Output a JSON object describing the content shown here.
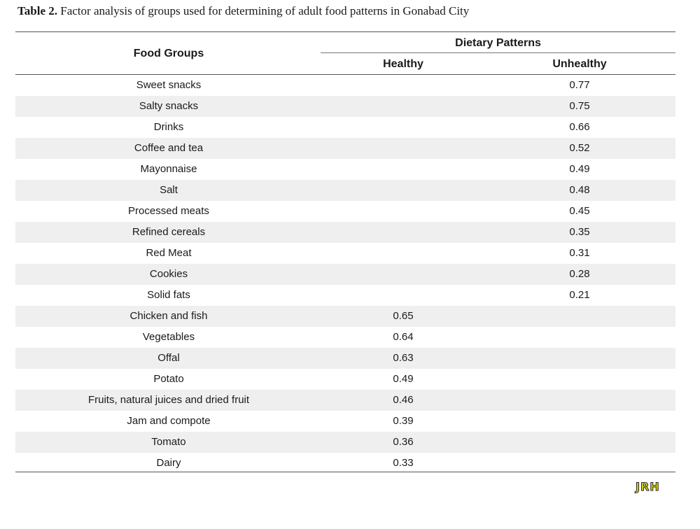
{
  "caption": {
    "label": "Table 2.",
    "text": " Factor analysis of groups used for determining of adult food patterns in Gonabad City"
  },
  "headers": {
    "food_groups": "Food Groups",
    "dietary_patterns": "Dietary Patterns",
    "healthy": "Healthy",
    "unhealthy": "Unhealthy"
  },
  "rows": [
    {
      "food": "Sweet snacks",
      "healthy": "",
      "unhealthy": "0.77"
    },
    {
      "food": "Salty snacks",
      "healthy": "",
      "unhealthy": "0.75"
    },
    {
      "food": "Drinks",
      "healthy": "",
      "unhealthy": "0.66"
    },
    {
      "food": "Coffee and tea",
      "healthy": "",
      "unhealthy": "0.52"
    },
    {
      "food": "Mayonnaise",
      "healthy": "",
      "unhealthy": "0.49"
    },
    {
      "food": "Salt",
      "healthy": "",
      "unhealthy": "0.48"
    },
    {
      "food": "Processed meats",
      "healthy": "",
      "unhealthy": "0.45"
    },
    {
      "food": "Refined cereals",
      "healthy": "",
      "unhealthy": "0.35"
    },
    {
      "food": "Red Meat",
      "healthy": "",
      "unhealthy": "0.31"
    },
    {
      "food": "Cookies",
      "healthy": "",
      "unhealthy": "0.28"
    },
    {
      "food": "Solid fats",
      "healthy": "",
      "unhealthy": "0.21"
    },
    {
      "food": "Chicken and fish",
      "healthy": "0.65",
      "unhealthy": ""
    },
    {
      "food": "Vegetables",
      "healthy": "0.64",
      "unhealthy": ""
    },
    {
      "food": "Offal",
      "healthy": "0.63",
      "unhealthy": ""
    },
    {
      "food": "Potato",
      "healthy": "0.49",
      "unhealthy": ""
    },
    {
      "food": "Fruits, natural juices and dried fruit",
      "healthy": "0.46",
      "unhealthy": ""
    },
    {
      "food": "Jam and compote",
      "healthy": "0.39",
      "unhealthy": ""
    },
    {
      "food": "Tomato",
      "healthy": "0.36",
      "unhealthy": ""
    },
    {
      "food": "Dairy",
      "healthy": "0.33",
      "unhealthy": ""
    }
  ],
  "logo": {
    "text": "JRH",
    "color": "#d8d200"
  }
}
